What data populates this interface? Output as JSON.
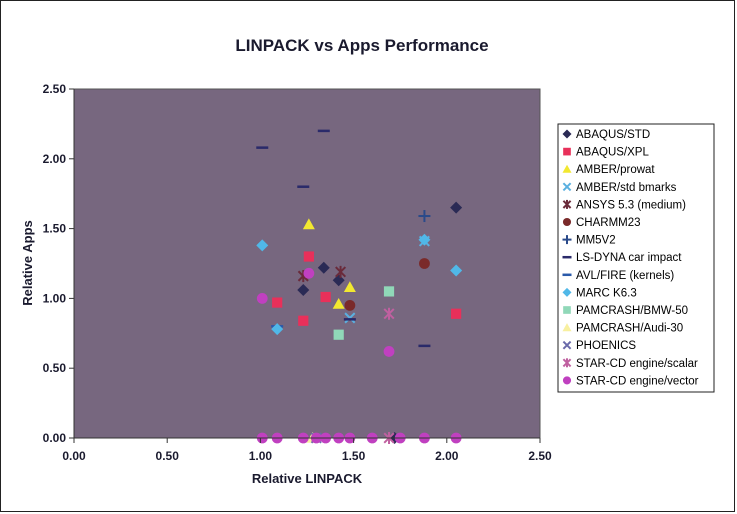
{
  "chart_data": {
    "type": "scatter",
    "title": "LINPACK vs Apps Performance",
    "xlabel": "Relative LINPACK",
    "ylabel": "Relative Apps",
    "xlim": [
      0,
      2.5
    ],
    "ylim": [
      0,
      2.5
    ],
    "x_ticks": [
      "0.00",
      "0.50",
      "1.00",
      "1.50",
      "2.00",
      "2.50"
    ],
    "y_ticks": [
      "0.00",
      "0.50",
      "1.00",
      "1.50",
      "2.00",
      "2.50"
    ],
    "plot_background": "#77677f",
    "grid": false,
    "legend_position": "right",
    "series": [
      {
        "name": "ABAQUS/STD",
        "marker": "diamond",
        "color": "#2a2a55",
        "points": [
          [
            1.23,
            1.06
          ],
          [
            1.34,
            1.22
          ],
          [
            1.42,
            1.13
          ],
          [
            2.05,
            1.65
          ],
          [
            1.72,
            0.0
          ]
        ]
      },
      {
        "name": "ABAQUS/XPL",
        "marker": "square",
        "color": "#e8305a",
        "points": [
          [
            1.09,
            0.97
          ],
          [
            1.23,
            0.84
          ],
          [
            1.26,
            1.3
          ],
          [
            1.35,
            1.01
          ],
          [
            2.05,
            0.89
          ]
        ]
      },
      {
        "name": "AMBER/prowat",
        "marker": "triangle",
        "color": "#f2e830",
        "points": [
          [
            1.26,
            1.53
          ],
          [
            1.42,
            0.96
          ],
          [
            1.48,
            1.08
          ]
        ]
      },
      {
        "name": "AMBER/std bmarks",
        "marker": "x",
        "color": "#5ab0e0",
        "points": [
          [
            1.88,
            1.41
          ],
          [
            1.48,
            0.86
          ]
        ]
      },
      {
        "name": "ANSYS 5.3 (medium)",
        "marker": "star",
        "color": "#6a2a3a",
        "points": [
          [
            1.23,
            1.16
          ],
          [
            1.43,
            1.19
          ]
        ]
      },
      {
        "name": "CHARMM23",
        "marker": "circle",
        "color": "#7a2a2a",
        "points": [
          [
            1.48,
            0.95
          ],
          [
            1.88,
            1.25
          ]
        ]
      },
      {
        "name": "MM5V2",
        "marker": "plus",
        "color": "#2a4a8a",
        "points": [
          [
            1.88,
            1.59
          ]
        ]
      },
      {
        "name": "LS-DYNA car impact",
        "marker": "dash",
        "color": "#2a2a6a",
        "points": [
          [
            1.01,
            2.08
          ],
          [
            1.23,
            1.8
          ],
          [
            1.34,
            2.2
          ],
          [
            1.48,
            0.85
          ],
          [
            1.88,
            0.66
          ]
        ]
      },
      {
        "name": "AVL/FIRE (kernels)",
        "marker": "dash",
        "color": "#2a5aaa",
        "points": [
          [
            1.09,
            0.8
          ]
        ]
      },
      {
        "name": "MARC K6.3",
        "marker": "diamond",
        "color": "#50b8e8",
        "points": [
          [
            1.01,
            1.38
          ],
          [
            1.09,
            0.78
          ],
          [
            2.05,
            1.2
          ],
          [
            1.88,
            1.42
          ]
        ]
      },
      {
        "name": "PAMCRASH/BMW-50",
        "marker": "square",
        "color": "#90d8b8",
        "points": [
          [
            1.42,
            0.74
          ],
          [
            1.69,
            1.05
          ]
        ]
      },
      {
        "name": "PAMCRASH/Audi-30",
        "marker": "triangle",
        "color": "#f8f0a0",
        "points": [
          [
            1.28,
            0.0
          ]
        ]
      },
      {
        "name": "PHOENICS",
        "marker": "x",
        "color": "#6a6aaa",
        "points": [
          [
            1.3,
            0.0
          ]
        ]
      },
      {
        "name": "STAR-CD engine/scalar",
        "marker": "star",
        "color": "#c060a0",
        "points": [
          [
            1.69,
            0.89
          ],
          [
            1.69,
            0.0
          ]
        ]
      },
      {
        "name": "STAR-CD engine/vector",
        "marker": "circle",
        "color": "#c040c0",
        "points": [
          [
            1.01,
            1.0
          ],
          [
            1.26,
            1.18
          ],
          [
            1.69,
            0.62
          ],
          [
            1.01,
            0.0
          ],
          [
            1.09,
            0.0
          ],
          [
            1.23,
            0.0
          ],
          [
            1.3,
            0.0
          ],
          [
            1.35,
            0.0
          ],
          [
            1.42,
            0.0
          ],
          [
            1.48,
            0.0
          ],
          [
            1.6,
            0.0
          ],
          [
            1.75,
            0.0
          ],
          [
            1.88,
            0.0
          ],
          [
            2.05,
            0.0
          ]
        ]
      }
    ]
  }
}
